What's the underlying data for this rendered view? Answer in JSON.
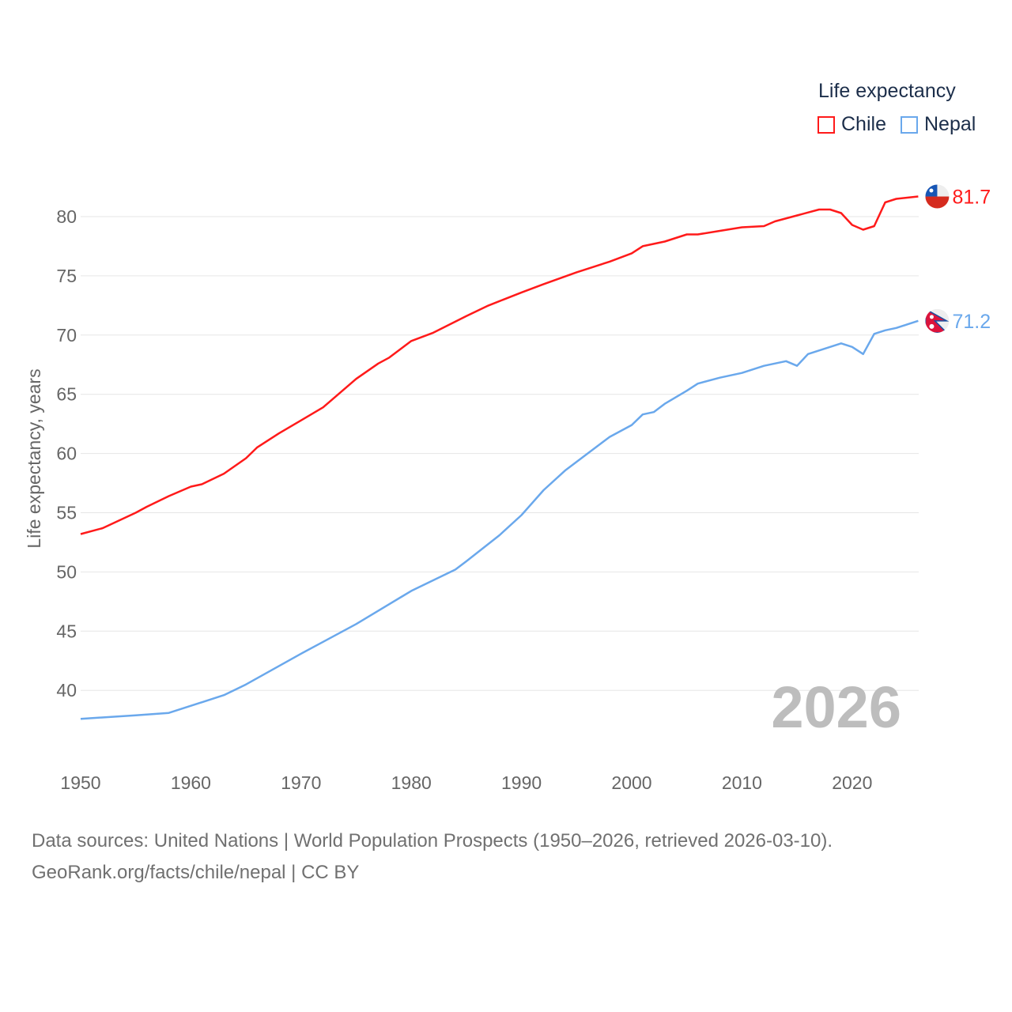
{
  "legend": {
    "title": "Life expectancy",
    "items": [
      {
        "label": "Chile",
        "color": "#ff1a1a"
      },
      {
        "label": "Nepal",
        "color": "#6aa8ec"
      }
    ]
  },
  "footer": {
    "line1": "Data sources: United Nations | World Population Prospects (1950–2026, retrieved 2026-03-10).",
    "line2": "GeoRank.org/facts/chile/nepal | CC BY"
  },
  "chart_data": {
    "type": "line",
    "title": "Life expectancy",
    "xlabel": "",
    "ylabel": "Life expectancy, years",
    "xlim": [
      1950,
      2026
    ],
    "ylim": [
      35,
      83
    ],
    "yticks": [
      40,
      45,
      50,
      55,
      60,
      65,
      70,
      75,
      80
    ],
    "xticks": [
      1950,
      1960,
      1970,
      1980,
      1990,
      2000,
      2010,
      2020
    ],
    "grid": true,
    "legend_position": "top-right",
    "year_annotation": "2026",
    "series": [
      {
        "name": "Chile",
        "color": "#ff1a1a",
        "end_label": "81.7",
        "flag": "chile-flag",
        "x": [
          1950,
          1952,
          1955,
          1956,
          1958,
          1960,
          1961,
          1963,
          1965,
          1966,
          1968,
          1970,
          1972,
          1975,
          1977,
          1978,
          1980,
          1982,
          1985,
          1987,
          1990,
          1992,
          1995,
          1998,
          2000,
          2001,
          2003,
          2005,
          2006,
          2008,
          2010,
          2012,
          2013,
          2015,
          2017,
          2018,
          2019,
          2020,
          2021,
          2022,
          2023,
          2024,
          2025,
          2026
        ],
        "y": [
          53.2,
          53.7,
          55.0,
          55.5,
          56.4,
          57.2,
          57.4,
          58.3,
          59.6,
          60.5,
          61.7,
          62.8,
          63.9,
          66.3,
          67.6,
          68.1,
          69.5,
          70.2,
          71.6,
          72.5,
          73.6,
          74.3,
          75.3,
          76.2,
          76.9,
          77.5,
          77.9,
          78.5,
          78.5,
          78.8,
          79.1,
          79.2,
          79.6,
          80.1,
          80.6,
          80.6,
          80.3,
          79.3,
          78.9,
          79.2,
          81.2,
          81.5,
          81.6,
          81.7
        ]
      },
      {
        "name": "Nepal",
        "color": "#6aa8ec",
        "end_label": "71.2",
        "flag": "nepal-flag",
        "x": [
          1950,
          1955,
          1958,
          1960,
          1963,
          1965,
          1970,
          1972,
          1975,
          1980,
          1984,
          1985,
          1988,
          1990,
          1992,
          1994,
          1995,
          1998,
          2000,
          2001,
          2002,
          2003,
          2005,
          2006,
          2008,
          2010,
          2012,
          2014,
          2015,
          2016,
          2019,
          2020,
          2021,
          2022,
          2023,
          2024,
          2025,
          2026
        ],
        "y": [
          37.6,
          37.9,
          38.1,
          38.7,
          39.6,
          40.5,
          43.1,
          44.1,
          45.6,
          48.4,
          50.2,
          50.9,
          53.1,
          54.8,
          56.9,
          58.6,
          59.3,
          61.4,
          62.4,
          63.3,
          63.5,
          64.2,
          65.3,
          65.9,
          66.4,
          66.8,
          67.4,
          67.8,
          67.4,
          68.4,
          69.3,
          69.0,
          68.4,
          70.1,
          70.4,
          70.6,
          70.9,
          71.2
        ]
      }
    ]
  }
}
